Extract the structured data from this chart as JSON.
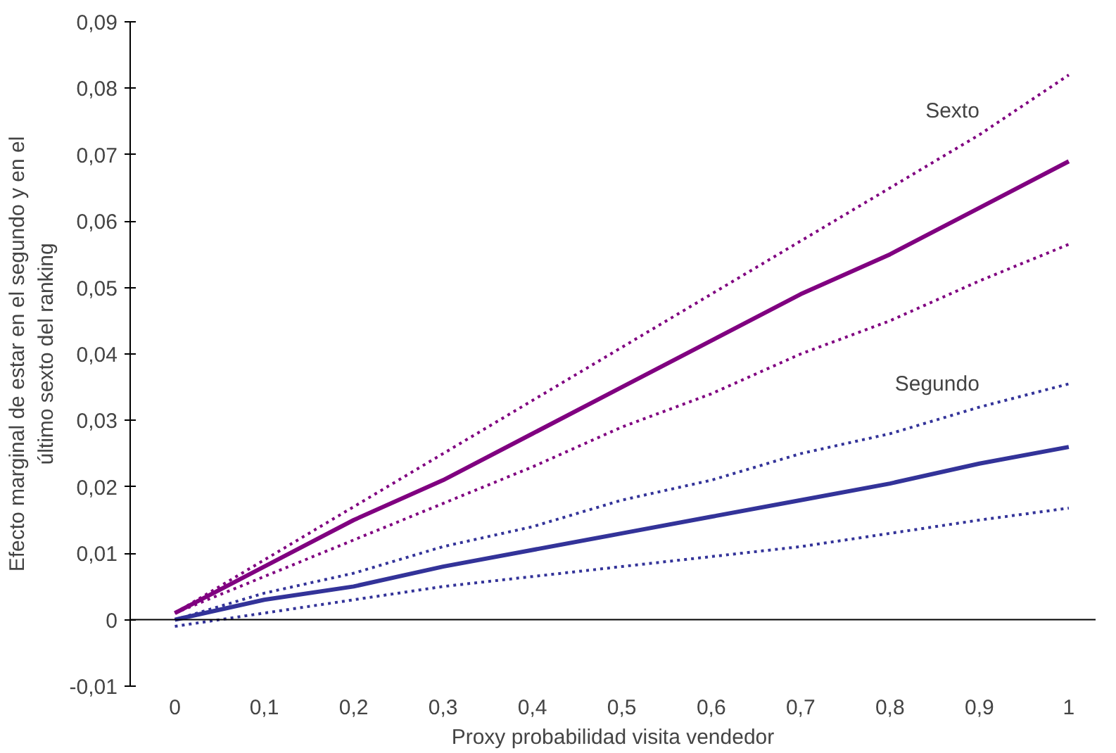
{
  "chart_data": {
    "type": "line",
    "xlabel": "Proxy probabilidad visita vendedor",
    "ylabel": "Efecto marginal de estar en el segundo y en el\núltimo sexto del ranking",
    "x": [
      0,
      0.1,
      0.2,
      0.3,
      0.4,
      0.5,
      0.6,
      0.7,
      0.8,
      0.9,
      1
    ],
    "xlim": [
      -0.05,
      1.03
    ],
    "xticks": [
      0,
      {
        "value": 0.1,
        "label": "0,1"
      },
      {
        "value": 0.2,
        "label": "0,2"
      },
      {
        "value": 0.3,
        "label": "0,3"
      },
      {
        "value": 0.4,
        "label": "0,4"
      },
      {
        "value": 0.5,
        "label": "0,5"
      },
      {
        "value": 0.6,
        "label": "0,6"
      },
      {
        "value": 0.7,
        "label": "0,7"
      },
      {
        "value": 0.8,
        "label": "0,8"
      },
      {
        "value": 0.9,
        "label": "0,9"
      },
      1
    ],
    "ylim": [
      -0.01,
      0.09
    ],
    "yticks": [
      {
        "value": -0.01,
        "label": "-0,01"
      },
      0,
      {
        "value": 0.01,
        "label": "0,01"
      },
      {
        "value": 0.02,
        "label": "0,02"
      },
      {
        "value": 0.03,
        "label": "0,03"
      },
      {
        "value": 0.04,
        "label": "0,04"
      },
      {
        "value": 0.05,
        "label": "0,05"
      },
      {
        "value": 0.06,
        "label": "0,06"
      },
      {
        "value": 0.07,
        "label": "0,07"
      },
      {
        "value": 0.08,
        "label": "0,08"
      },
      {
        "value": 0.09,
        "label": "0,09"
      }
    ],
    "grid": false,
    "legend": false,
    "marker": "none",
    "series": [
      {
        "name": "Sexto",
        "color": "#800080",
        "line_style": "dotted",
        "values": [
          0.001,
          0.009,
          0.017,
          0.025,
          0.033,
          0.041,
          0.049,
          0.057,
          0.065,
          0.073,
          0.082
        ]
      },
      {
        "color": "#800080",
        "line_style": "solid",
        "values": [
          0.001,
          0.008,
          0.015,
          0.021,
          0.028,
          0.035,
          0.042,
          0.049,
          0.055,
          0.062,
          0.069
        ]
      },
      {
        "color": "#800080",
        "line_style": "dotted",
        "values": [
          0.001,
          0.0065,
          0.012,
          0.0175,
          0.023,
          0.029,
          0.034,
          0.04,
          0.045,
          0.051,
          0.0565
        ]
      },
      {
        "name": "Segundo",
        "color": "#333399",
        "line_style": "dotted",
        "values": [
          0,
          0.004,
          0.007,
          0.011,
          0.014,
          0.018,
          0.021,
          0.025,
          0.028,
          0.032,
          0.0355
        ]
      },
      {
        "color": "#333399",
        "line_style": "solid",
        "values": [
          0,
          0.003,
          0.005,
          0.008,
          0.0105,
          0.013,
          0.0155,
          0.018,
          0.0205,
          0.0235,
          0.026
        ]
      },
      {
        "color": "#333399",
        "line_style": "dotted",
        "values": [
          -0.001,
          0.001,
          0.003,
          0.005,
          0.0065,
          0.008,
          0.0095,
          0.011,
          0.013,
          0.015,
          0.0168
        ]
      }
    ],
    "ref_lines": [
      {
        "axis": "y",
        "value": 0,
        "color": "#000000"
      }
    ]
  }
}
